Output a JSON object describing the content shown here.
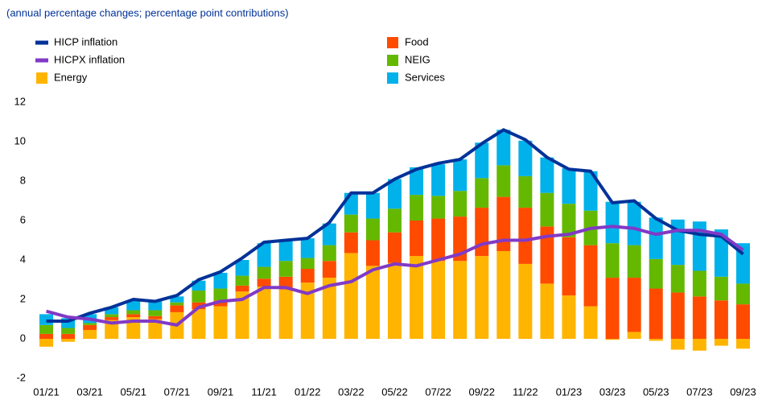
{
  "chart_data": {
    "type": "bar",
    "subtitle": "(annual percentage changes; percentage point contributions)",
    "categories": [
      "01/21",
      null,
      "03/21",
      null,
      "05/21",
      null,
      "07/21",
      null,
      "09/21",
      null,
      "11/21",
      null,
      "01/22",
      null,
      "03/22",
      null,
      "05/22",
      null,
      "07/22",
      null,
      "09/22",
      null,
      "11/22",
      null,
      "01/23",
      null,
      "03/23",
      null,
      "05/23",
      null,
      "07/23",
      null,
      "09/23"
    ],
    "series": [
      {
        "name": "HICP inflation",
        "type": "line",
        "color": "#003299",
        "values": [
          0.9,
          0.9,
          1.3,
          1.6,
          2.0,
          1.9,
          2.2,
          3.0,
          3.4,
          4.1,
          4.9,
          5.0,
          5.1,
          5.9,
          7.4,
          7.4,
          8.1,
          8.6,
          8.9,
          9.1,
          9.9,
          10.6,
          10.1,
          9.2,
          8.6,
          8.5,
          6.9,
          7.0,
          6.1,
          5.5,
          5.3,
          5.2,
          4.3
        ]
      },
      {
        "name": "HICPX inflation",
        "type": "line",
        "color": "#8139c6",
        "values": [
          1.4,
          1.1,
          1.0,
          0.8,
          0.9,
          0.9,
          0.7,
          1.6,
          1.9,
          2.0,
          2.6,
          2.6,
          2.3,
          2.7,
          2.9,
          3.5,
          3.8,
          3.7,
          4.0,
          4.3,
          4.8,
          5.0,
          5.0,
          5.2,
          5.3,
          5.6,
          5.7,
          5.6,
          5.3,
          5.5,
          5.5,
          5.3,
          4.5
        ]
      },
      {
        "name": "Energy",
        "type": "bar",
        "color": "#ffb400",
        "values": [
          -0.4,
          -0.15,
          0.45,
          0.95,
          1.1,
          1.0,
          1.35,
          1.5,
          1.65,
          2.4,
          2.65,
          2.5,
          2.85,
          3.1,
          4.35,
          3.7,
          3.85,
          4.2,
          3.95,
          3.95,
          4.2,
          4.45,
          3.8,
          2.8,
          2.2,
          1.65,
          -0.05,
          0.35,
          -0.1,
          -0.55,
          -0.6,
          -0.35,
          -0.5
        ]
      },
      {
        "name": "Food",
        "type": "bar",
        "color": "#ff4b00",
        "values": [
          0.25,
          0.25,
          0.25,
          0.15,
          0.15,
          0.15,
          0.35,
          0.35,
          0.3,
          0.3,
          0.4,
          0.65,
          0.7,
          0.85,
          1.05,
          1.3,
          1.55,
          1.8,
          2.15,
          2.25,
          2.45,
          2.75,
          2.85,
          2.9,
          2.95,
          3.1,
          3.1,
          2.75,
          2.55,
          2.35,
          2.15,
          1.95,
          1.75
        ]
      },
      {
        "name": "NEIG",
        "type": "bar",
        "color": "#65b800",
        "values": [
          0.45,
          0.3,
          0.1,
          0.15,
          0.2,
          0.3,
          0.15,
          0.6,
          0.6,
          0.5,
          0.6,
          0.8,
          0.55,
          0.8,
          0.9,
          1.1,
          1.2,
          1.3,
          1.15,
          1.3,
          1.5,
          1.6,
          1.6,
          1.7,
          1.7,
          1.75,
          1.75,
          1.65,
          1.5,
          1.4,
          1.3,
          1.2,
          1.05
        ]
      },
      {
        "name": "Services",
        "type": "bar",
        "color": "#00b1ea",
        "values": [
          0.55,
          0.5,
          0.45,
          0.35,
          0.5,
          0.45,
          0.3,
          0.5,
          0.8,
          0.8,
          1.2,
          1.0,
          1.0,
          1.1,
          1.1,
          1.3,
          1.5,
          1.4,
          1.6,
          1.6,
          1.8,
          1.8,
          1.8,
          1.8,
          1.8,
          2.0,
          2.1,
          2.2,
          2.1,
          2.3,
          2.5,
          2.4,
          2.05
        ]
      }
    ],
    "ylim": [
      -2,
      12
    ],
    "yticks": [
      -2,
      0,
      2,
      4,
      6,
      8,
      10,
      12
    ],
    "grid": false
  }
}
